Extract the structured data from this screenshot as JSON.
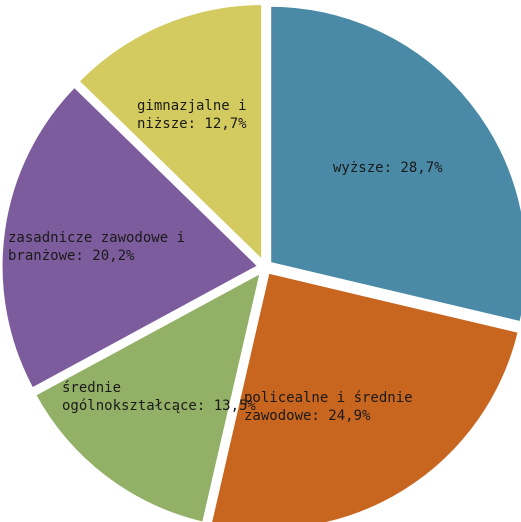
{
  "chart_data": {
    "type": "pie",
    "title": "",
    "slices": [
      {
        "label_lines": [
          "wyższe: 28,7%"
        ],
        "value": 28.7,
        "color": "#4a8aa6"
      },
      {
        "label_lines": [
          "policealne i średnie",
          "zawodowe: 24,9%"
        ],
        "value": 24.9,
        "color": "#c8651e"
      },
      {
        "label_lines": [
          "średnie",
          "ogólnokształcące: 13,5%"
        ],
        "value": 13.5,
        "color": "#93b067"
      },
      {
        "label_lines": [
          "zasadnicze zawodowe i",
          "branżowe: 20,2%"
        ],
        "value": 20.2,
        "color": "#7d5c9d"
      },
      {
        "label_lines": [
          "gimnazjalne i",
          "niższe: 12,7%"
        ],
        "value": 12.7,
        "color": "#d4cb60"
      }
    ]
  }
}
